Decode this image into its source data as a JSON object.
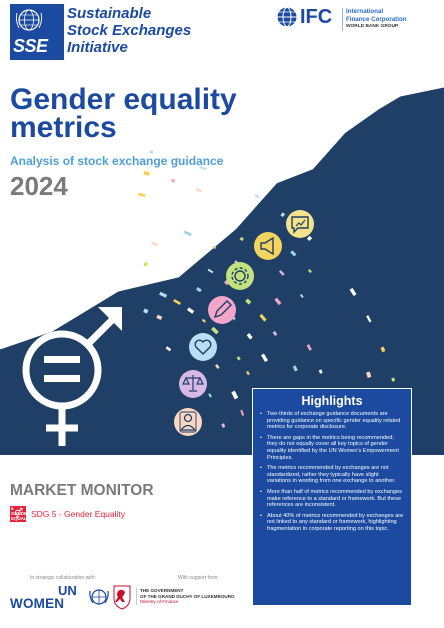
{
  "header": {
    "sse_abbr": "SSE",
    "sse_name_lines": [
      "Sustainable",
      "Stock Exchanges",
      "Initiative"
    ],
    "ifc_mark": "IFC",
    "ifc_lines": [
      "International",
      "Finance Corporation"
    ],
    "ifc_group": "WORLD BANK GROUP"
  },
  "cover": {
    "title_lines": [
      "Gender equality",
      "metrics"
    ],
    "subtitle": "Analysis of stock exchange guidance",
    "year": "2024"
  },
  "icons": [
    "megaphone-icon",
    "chat-icon",
    "gear-icon",
    "pencil-icon",
    "heart-icon",
    "scales-icon",
    "person-icon",
    "gender-equality-symbol"
  ],
  "highlights": {
    "title": "Highlights",
    "items": [
      "Two-thirds of exchange guidance documents are providing guidance on specific gender equality related metrics for corporate disclosure.",
      "There are gaps in the metrics being recommended; they do not equally cover all key topics of gender equality identified by the UN Women’s Empowerment Principles.",
      "The metrics recommended by exchanges are not standardized, rather they typically have slight variations in wording from one exchange to another.",
      "More than half of metrics recommended by exchanges make reference to a standard or framework. But these references are inconsistent.",
      "About 40% of metrics recommended by exchanges are not linked to any standard or framework, highlighting fragmentation in corporate reporting on this topic."
    ]
  },
  "market": {
    "label": "MARKET MONITOR",
    "sdg_number": "5 GENDER EQUALITY",
    "sdg_label": "SDG 5 - Gender Equality"
  },
  "footer": {
    "collab_label": "In strategic collaboration with:",
    "support_label": "With support from:",
    "un_text": "UN",
    "women_text": "WOMEN",
    "lux_lines": [
      "THE GOVERNMENT",
      "OF THE GRAND DUCHY OF LUXEMBOURG"
    ],
    "lux_ministry": "Ministry of Finance"
  },
  "colors": {
    "brand_blue": "#1b4aa0",
    "dark_navy": "#1f3f66",
    "light_blue": "#4f9ed8",
    "gray": "#7a7a7a",
    "sdg_red": "#e5243b"
  }
}
